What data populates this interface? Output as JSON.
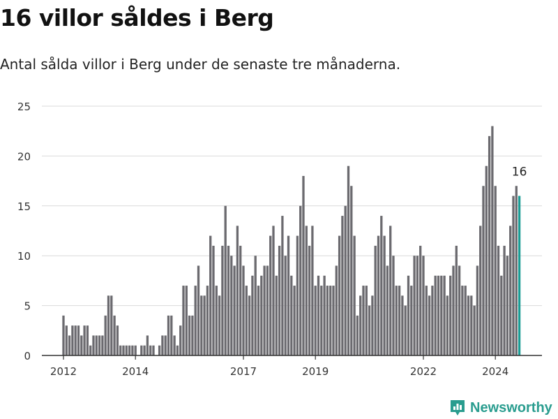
{
  "title": "16 villor såldes i Berg",
  "subtitle": "Antal sålda villor i Berg under de senaste tre månaderna.",
  "brand": {
    "name": "Newsworthy",
    "icon": "bar-chart-logo-icon",
    "color": "#2a9d8f"
  },
  "colors": {
    "bar": "#6b6a6f",
    "highlight": "#1a9c94",
    "grid": "#d9d9d9",
    "axis": "#333333"
  },
  "chart_data": {
    "type": "bar",
    "title": "",
    "xlabel": "",
    "ylabel": "",
    "ylim": [
      0,
      25
    ],
    "yticks": [
      "0",
      "5",
      "10",
      "15",
      "20",
      "25"
    ],
    "xticks": [
      "2012",
      "2014",
      "2017",
      "2019",
      "2022",
      "2024"
    ],
    "grid": true,
    "highlight_label": "16",
    "start_month": "2012-01",
    "values": [
      4,
      3,
      2,
      3,
      3,
      3,
      2,
      3,
      3,
      1,
      2,
      2,
      2,
      2,
      4,
      6,
      6,
      4,
      3,
      1,
      1,
      1,
      1,
      1,
      1,
      0,
      1,
      1,
      2,
      1,
      1,
      0,
      1,
      2,
      2,
      4,
      4,
      2,
      1,
      3,
      7,
      7,
      4,
      4,
      7,
      9,
      6,
      6,
      7,
      12,
      11,
      7,
      6,
      11,
      15,
      11,
      10,
      9,
      13,
      11,
      9,
      7,
      6,
      8,
      10,
      7,
      8,
      9,
      9,
      12,
      13,
      8,
      11,
      14,
      10,
      12,
      8,
      7,
      12,
      15,
      18,
      13,
      11,
      13,
      7,
      8,
      7,
      8,
      7,
      7,
      7,
      9,
      12,
      14,
      15,
      19,
      17,
      12,
      4,
      6,
      7,
      7,
      5,
      6,
      11,
      12,
      14,
      12,
      9,
      13,
      10,
      7,
      7,
      6,
      5,
      8,
      7,
      10,
      10,
      11,
      10,
      7,
      6,
      7,
      8,
      8,
      8,
      8,
      6,
      8,
      9,
      11,
      9,
      7,
      7,
      6,
      6,
      5,
      9,
      13,
      17,
      19,
      22,
      23,
      17,
      11,
      8,
      11,
      10,
      13,
      16,
      17,
      16
    ]
  }
}
